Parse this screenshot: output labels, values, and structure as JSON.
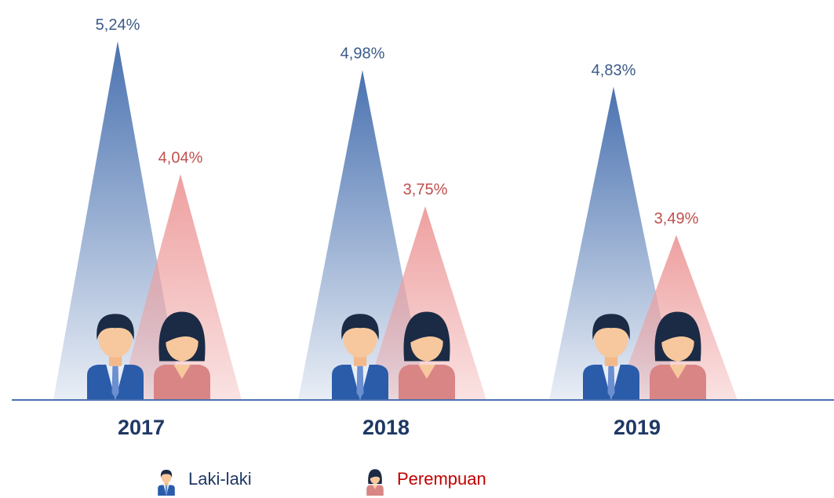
{
  "chart_data": {
    "type": "peak",
    "categories": [
      "2017",
      "2018",
      "2019"
    ],
    "series": [
      {
        "name": "Laki-laki",
        "color": "#4a72b0",
        "label_color": "#3b5a8a",
        "values": [
          5.24,
          4.98,
          4.83
        ],
        "value_labels": [
          "5,24%",
          "4,98%",
          "4,83%"
        ]
      },
      {
        "name": "Perempuan",
        "color": "#ee9f9f",
        "label_color": "#c0504d",
        "values": [
          4.04,
          3.75,
          3.49
        ],
        "value_labels": [
          "4,04%",
          "3,75%",
          "3,49%"
        ]
      }
    ],
    "ylim": [
      2,
      5.4
    ]
  }
}
